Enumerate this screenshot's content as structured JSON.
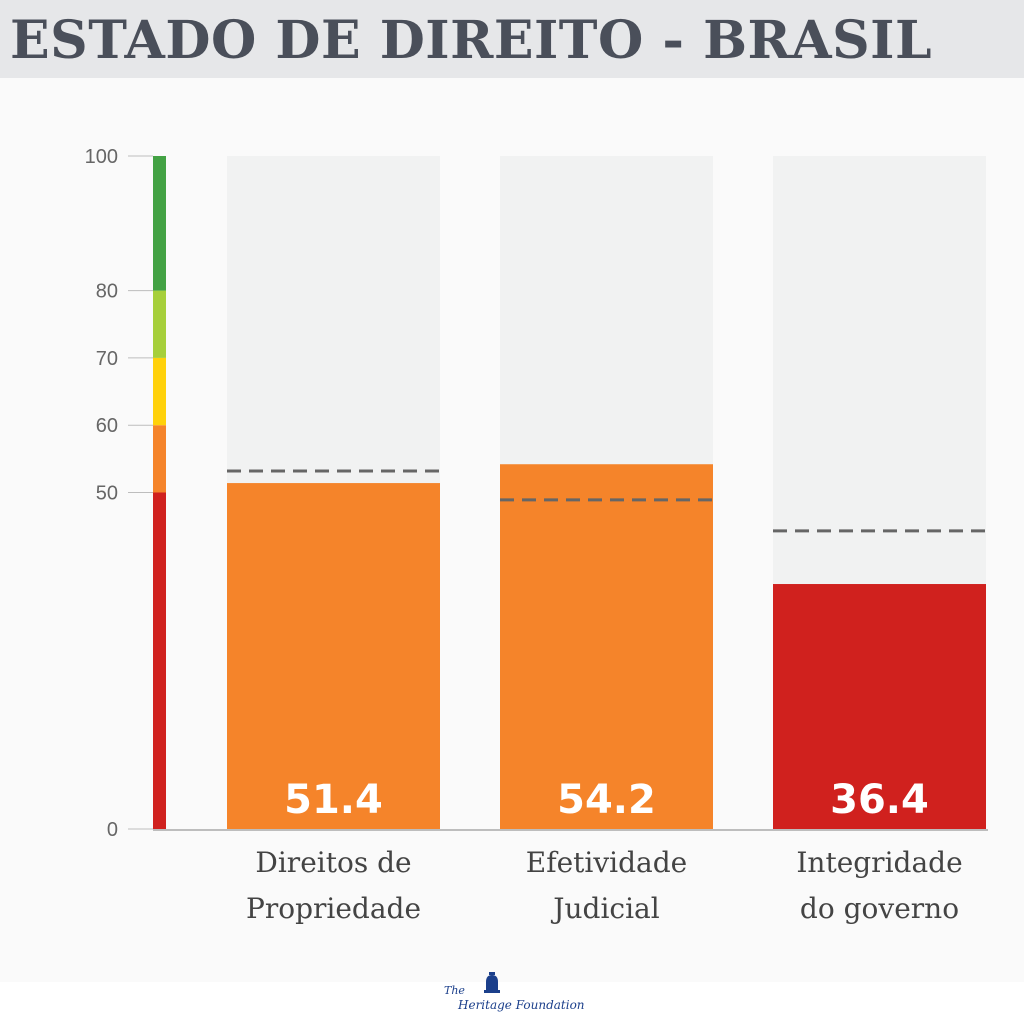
{
  "title": "ESTADO DE DIREITO - BRASIL",
  "chart_data": {
    "type": "bar",
    "ylim": [
      0,
      100
    ],
    "y_ticks": [
      0,
      50,
      60,
      70,
      80,
      100
    ],
    "scale_bands": [
      {
        "from": 0,
        "to": 50,
        "color": "#d0211e"
      },
      {
        "from": 50,
        "to": 60,
        "color": "#f5842a"
      },
      {
        "from": 60,
        "to": 70,
        "color": "#ffd10a"
      },
      {
        "from": 70,
        "to": 80,
        "color": "#a6cf3a"
      },
      {
        "from": 80,
        "to": 100,
        "color": "#43a244"
      }
    ],
    "categories": [
      [
        "Direitos de",
        "Propriedade"
      ],
      [
        "Efetividade",
        "Judicial"
      ],
      [
        "Integridade",
        "do governo"
      ]
    ],
    "values": [
      51.4,
      54.2,
      36.4
    ],
    "value_labels": [
      "51.4",
      "54.2",
      "36.4"
    ],
    "reference_values": [
      53.2,
      48.9,
      44.3
    ],
    "bar_colors": [
      "#f5842a",
      "#f5842a",
      "#d0211e"
    ],
    "background_bar_color": "#f1f2f2",
    "reference_line_color": "#666666"
  },
  "footer": {
    "logo_the": "The",
    "logo_name": "Heritage Foundation"
  }
}
